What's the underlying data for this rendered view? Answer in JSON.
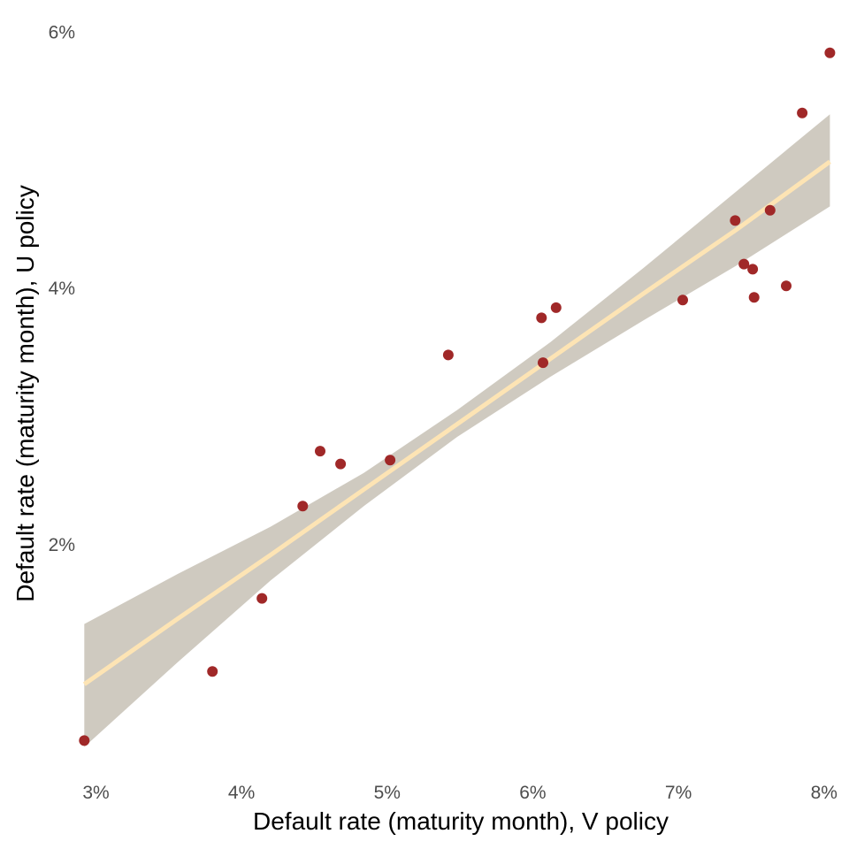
{
  "chart_data": {
    "type": "scatter",
    "title": "",
    "xlabel": "Default rate (maturity month), V policy",
    "ylabel": "Default rate (maturity month), U policy",
    "xlim": [
      2.9,
      8.05
    ],
    "ylim": [
      0.3,
      6.1
    ],
    "x_ticks": [
      3,
      4,
      5,
      6,
      7,
      8
    ],
    "x_tick_labels": [
      "3%",
      "4%",
      "5%",
      "6%",
      "7%",
      "8%"
    ],
    "y_ticks": [
      2,
      4,
      6
    ],
    "y_tick_labels": [
      "2%",
      "4%",
      "6%"
    ],
    "grid": false,
    "legend": "none",
    "colors": {
      "points": "#a02828",
      "fit_line": "#fde4b4",
      "confidence_band": "#cfcac0"
    },
    "points": [
      {
        "x": 2.92,
        "y": 0.47
      },
      {
        "x": 3.8,
        "y": 1.01
      },
      {
        "x": 4.14,
        "y": 1.58
      },
      {
        "x": 4.42,
        "y": 2.3
      },
      {
        "x": 4.54,
        "y": 2.73
      },
      {
        "x": 4.68,
        "y": 2.63
      },
      {
        "x": 5.02,
        "y": 2.66
      },
      {
        "x": 5.42,
        "y": 3.48
      },
      {
        "x": 6.06,
        "y": 3.77
      },
      {
        "x": 6.07,
        "y": 3.42
      },
      {
        "x": 6.16,
        "y": 3.85
      },
      {
        "x": 7.03,
        "y": 3.91
      },
      {
        "x": 7.39,
        "y": 4.53
      },
      {
        "x": 7.45,
        "y": 4.19
      },
      {
        "x": 7.51,
        "y": 4.15
      },
      {
        "x": 7.52,
        "y": 3.93
      },
      {
        "x": 7.63,
        "y": 4.61
      },
      {
        "x": 7.74,
        "y": 4.02
      },
      {
        "x": 7.85,
        "y": 5.37
      },
      {
        "x": 8.04,
        "y": 5.84
      }
    ],
    "fit": {
      "x": [
        2.92,
        3.56,
        4.2,
        4.84,
        5.48,
        6.12,
        6.76,
        7.4,
        8.04
      ],
      "y": [
        0.91,
        1.42,
        1.92,
        2.43,
        2.94,
        3.45,
        3.96,
        4.46,
        4.99
      ],
      "lower": [
        0.42,
        1.08,
        1.72,
        2.3,
        2.84,
        3.31,
        3.75,
        4.18,
        4.64
      ],
      "upper": [
        1.38,
        1.77,
        2.14,
        2.56,
        3.05,
        3.58,
        4.16,
        4.76,
        5.36
      ]
    }
  }
}
